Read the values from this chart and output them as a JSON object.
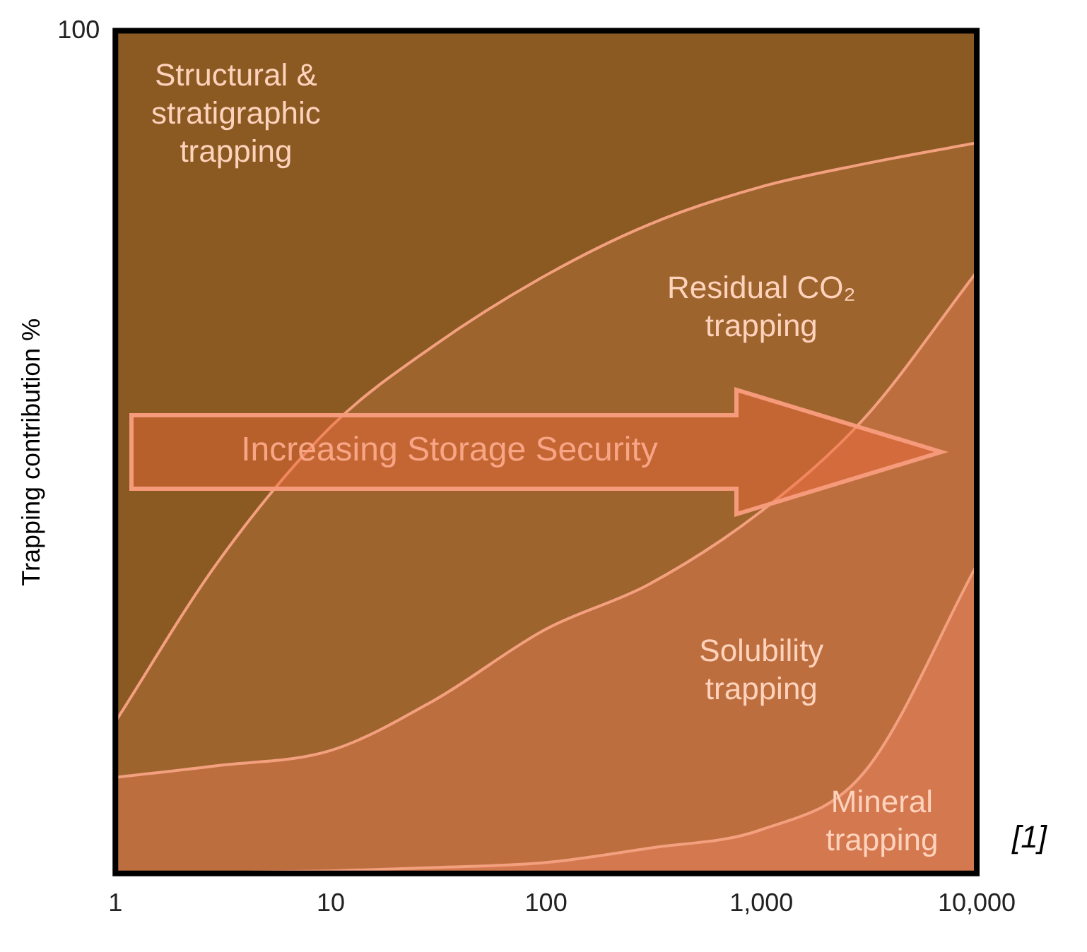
{
  "chart_data": {
    "type": "area",
    "stacked": true,
    "log": "x",
    "ylabel": "Trapping contribution %",
    "x": [
      1,
      3,
      10,
      30,
      100,
      300,
      1000,
      3000,
      10000
    ],
    "series": [
      {
        "name": "Mineral trapping",
        "color": "#d4784f",
        "values": [
          0,
          0.1,
          0.3,
          0.7,
          1.3,
          3,
          5.2,
          12,
          36.6
        ]
      },
      {
        "name": "Solubility trapping",
        "color": "#bd6e3e",
        "values": [
          11.4,
          12.7,
          14.3,
          19.8,
          27.7,
          31.3,
          37.8,
          42,
          34.8
        ]
      },
      {
        "name": "Residual CO₂ trapping",
        "color": "#9e642e",
        "values": [
          6.6,
          24.2,
          38.4,
          42.1,
          42,
          42.7,
          38.5,
          30.2,
          15.3
        ]
      },
      {
        "name": "Structural & stratigraphic trapping",
        "color": "#8b5a22",
        "values": [
          82,
          63,
          47,
          37.4,
          29,
          23,
          18.5,
          15.8,
          13.3
        ]
      }
    ],
    "xlim": [
      1,
      10000
    ],
    "xticks": [
      1,
      10,
      100,
      {
        "value": 1000,
        "label": "1,000"
      },
      {
        "value": 10000,
        "label": "10,000"
      }
    ],
    "ylim": [
      0,
      100
    ],
    "yticks": [
      0,
      100
    ],
    "grid": false,
    "legend": false,
    "annotations": [
      "Increasing Storage Security",
      "[1]"
    ]
  }
}
